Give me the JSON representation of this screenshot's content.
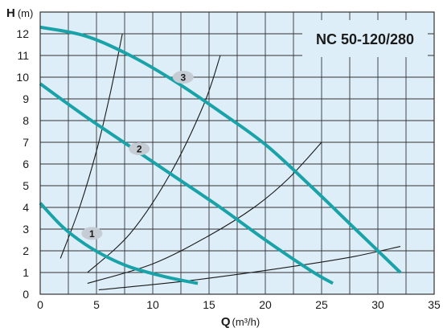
{
  "chart_data": {
    "type": "line",
    "title": "NC 50-120/280",
    "ylabel": "H",
    "ylabel_unit": "(m)",
    "xlabel": "Q",
    "xlabel_unit": "(m³/h)",
    "xlim": [
      0,
      35
    ],
    "ylim": [
      0,
      13
    ],
    "x_ticks": [
      "0",
      "5",
      "10",
      "15",
      "20",
      "25",
      "30",
      "35"
    ],
    "y_ticks": [
      "0",
      "1",
      "2",
      "3",
      "4",
      "5",
      "6",
      "7",
      "8",
      "9",
      "10",
      "11",
      "12"
    ],
    "grid": true,
    "colors": {
      "background": "#ddeef8",
      "grid": "#333333",
      "curve": "#19a3a8",
      "system": "#1a1a1a",
      "badge": "#c5ccd3"
    },
    "series": [
      {
        "name": "1",
        "label_at": [
          4.6,
          2.8
        ],
        "x": [
          0,
          2,
          4,
          6,
          8,
          10,
          12,
          14
        ],
        "y": [
          4.2,
          3.1,
          2.3,
          1.7,
          1.25,
          0.95,
          0.7,
          0.5
        ]
      },
      {
        "name": "2",
        "label_at": [
          8.8,
          6.7
        ],
        "x": [
          0,
          4,
          8,
          12,
          16,
          20,
          24,
          26
        ],
        "y": [
          9.7,
          8.2,
          6.8,
          5.4,
          4.0,
          2.5,
          1.1,
          0.5
        ]
      },
      {
        "name": "3",
        "label_at": [
          12.7,
          10.0
        ],
        "x": [
          0,
          4,
          8,
          12,
          16,
          20,
          24,
          28,
          32
        ],
        "y": [
          12.3,
          11.9,
          11.0,
          9.8,
          8.4,
          6.9,
          5.0,
          3.0,
          1.0
        ]
      }
    ],
    "system_curves": [
      {
        "x": [
          1.8,
          3.5,
          5.0,
          6.2,
          7.3
        ],
        "y": [
          1.65,
          4.0,
          6.6,
          9.2,
          12.0
        ]
      },
      {
        "x": [
          4.2,
          8.0,
          11.5,
          14.5,
          16.0
        ],
        "y": [
          1.0,
          2.8,
          5.5,
          8.7,
          11.0
        ]
      },
      {
        "x": [
          4.2,
          10.0,
          15.0,
          19.0,
          22.0,
          25.0
        ],
        "y": [
          0.5,
          1.4,
          2.7,
          4.0,
          5.3,
          7.0
        ]
      },
      {
        "x": [
          5.2,
          12.0,
          18.0,
          24.0,
          28.0,
          32.0
        ],
        "y": [
          0.2,
          0.55,
          0.95,
          1.4,
          1.75,
          2.2
        ]
      }
    ]
  }
}
